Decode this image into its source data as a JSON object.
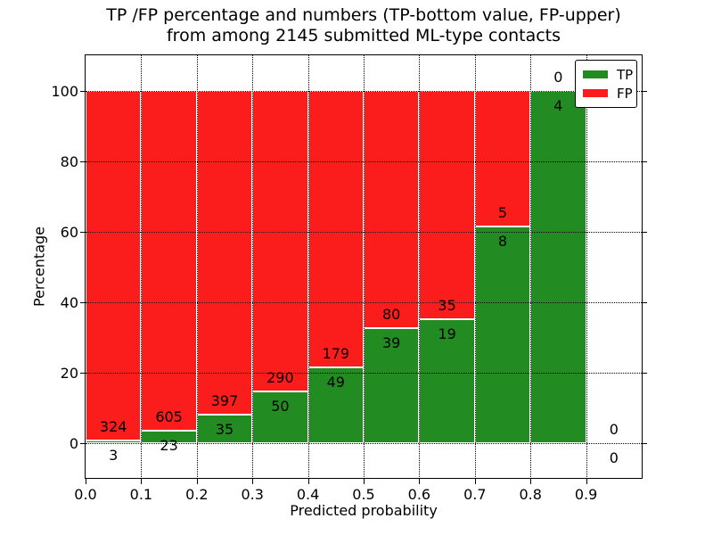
{
  "title": {
    "line1": "TP /FP percentage and numbers (TP-bottom value, FP-upper)",
    "line2": "from among 2145 submitted ML-type contacts"
  },
  "axes": {
    "x_label": "Predicted probability",
    "y_label": "Percentage",
    "x_tick_labels": [
      "0.0",
      "0.1",
      "0.2",
      "0.3",
      "0.4",
      "0.5",
      "0.6",
      "0.7",
      "0.8",
      "0.9"
    ],
    "y_tick_labels": [
      "0",
      "20",
      "40",
      "60",
      "80",
      "100"
    ]
  },
  "chart_data": {
    "type": "bar",
    "stacked": true,
    "normalized": "percent of bin total (TP+FP)",
    "title": "TP /FP percentage and numbers (TP-bottom value, FP-upper) from among 2145 submitted ML-type contacts",
    "xlabel": "Predicted probability",
    "ylabel": "Percentage",
    "xlim": [
      0.0,
      1.0
    ],
    "ylim": [
      -10,
      110
    ],
    "x_ticks": [
      0.0,
      0.1,
      0.2,
      0.3,
      0.4,
      0.5,
      0.6,
      0.7,
      0.8,
      0.9
    ],
    "y_ticks": [
      0,
      20,
      40,
      60,
      80,
      100
    ],
    "grid": true,
    "grid_style": "dotted",
    "legend_position": "upper right",
    "total_contacts": 2145,
    "categories": [
      "0.0-0.1",
      "0.1-0.2",
      "0.2-0.3",
      "0.3-0.4",
      "0.4-0.5",
      "0.5-0.6",
      "0.6-0.7",
      "0.7-0.8",
      "0.8-0.9",
      "0.9-1.0"
    ],
    "series": [
      {
        "name": "TP",
        "color": "#228c22",
        "values": [
          3,
          23,
          35,
          50,
          49,
          39,
          19,
          8,
          4,
          0
        ]
      },
      {
        "name": "FP",
        "color": "#fb1c1c",
        "values": [
          324,
          605,
          397,
          290,
          179,
          80,
          35,
          5,
          0,
          0
        ]
      }
    ],
    "bins": [
      {
        "x0": 0.0,
        "x1": 0.1,
        "tp": 3,
        "fp": 324,
        "tp_pct": 0.92
      },
      {
        "x0": 0.1,
        "x1": 0.2,
        "tp": 23,
        "fp": 605,
        "tp_pct": 3.66
      },
      {
        "x0": 0.2,
        "x1": 0.3,
        "tp": 35,
        "fp": 397,
        "tp_pct": 8.1
      },
      {
        "x0": 0.3,
        "x1": 0.4,
        "tp": 50,
        "fp": 290,
        "tp_pct": 14.71
      },
      {
        "x0": 0.4,
        "x1": 0.5,
        "tp": 49,
        "fp": 179,
        "tp_pct": 21.49
      },
      {
        "x0": 0.5,
        "x1": 0.6,
        "tp": 39,
        "fp": 80,
        "tp_pct": 32.77
      },
      {
        "x0": 0.6,
        "x1": 0.7,
        "tp": 19,
        "fp": 35,
        "tp_pct": 35.19
      },
      {
        "x0": 0.7,
        "x1": 0.8,
        "tp": 8,
        "fp": 5,
        "tp_pct": 61.54
      },
      {
        "x0": 0.8,
        "x1": 0.9,
        "tp": 4,
        "fp": 0,
        "tp_pct": 100.0
      },
      {
        "x0": 0.9,
        "x1": 1.0,
        "tp": 0,
        "fp": 0,
        "tp_pct": 0.0
      }
    ],
    "annotation_note": "FP count printed above TP/FP boundary, TP count printed below"
  }
}
